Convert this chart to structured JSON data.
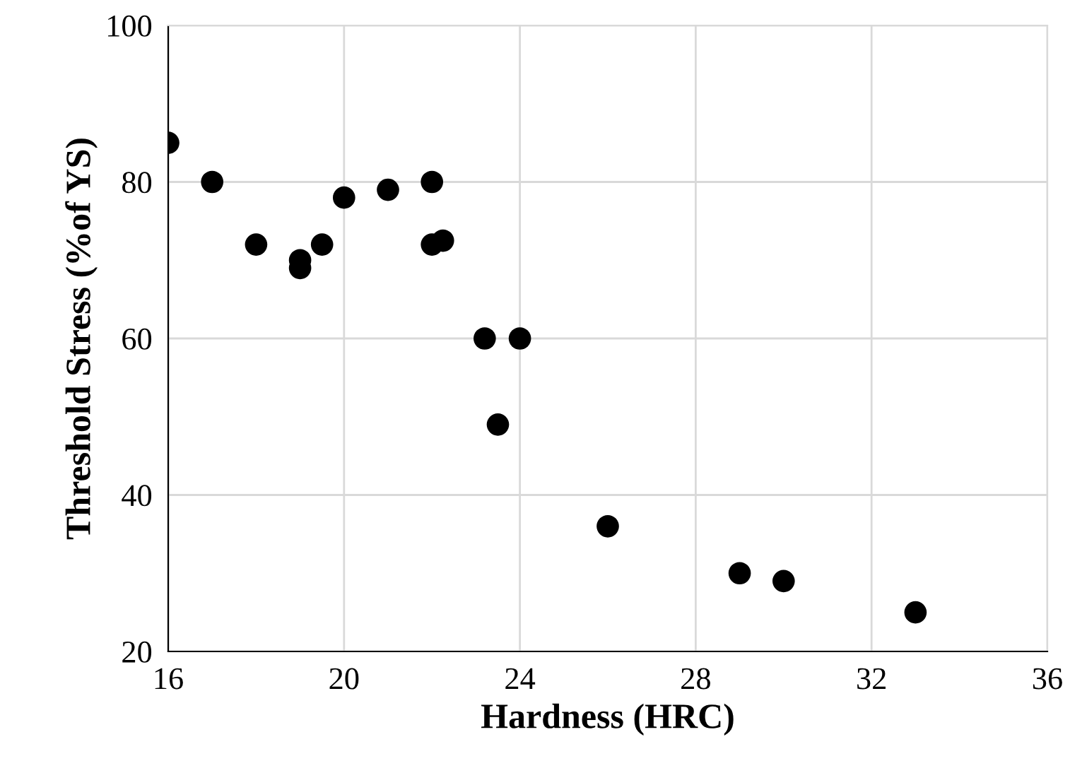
{
  "chart_data": {
    "type": "scatter",
    "xlabel": "Hardness (HRC)",
    "ylabel": "Threshold Stress (%of YS)",
    "x": [
      16,
      17,
      18,
      19,
      19,
      19.5,
      20,
      21,
      22,
      22,
      22.25,
      23.2,
      23.5,
      24,
      26,
      29,
      30,
      33
    ],
    "values": [
      85,
      80,
      72,
      70,
      69,
      72,
      78,
      79,
      80,
      72,
      72.5,
      60,
      49,
      60,
      36,
      30,
      29,
      25
    ],
    "color": "#000000",
    "marker": "circle",
    "xlim": [
      16,
      36
    ],
    "xticks": [
      16,
      20,
      24,
      28,
      32,
      36
    ],
    "ylim": [
      20,
      100
    ],
    "yticks": [
      20,
      40,
      60,
      80,
      100
    ],
    "grid": true
  }
}
